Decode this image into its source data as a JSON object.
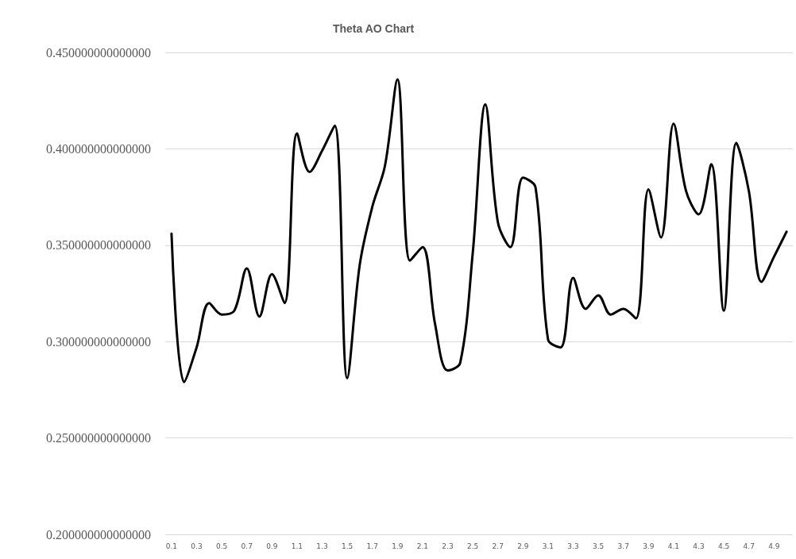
{
  "chart_data": {
    "type": "line",
    "title": "Theta AO Chart",
    "categories": [
      "0.1",
      null,
      "0.3",
      null,
      "0.5",
      null,
      "0.7",
      null,
      "0.9",
      null,
      "1.1",
      null,
      "1.3",
      null,
      "1.5",
      null,
      "1.7",
      null,
      "1.9",
      null,
      "2.1",
      null,
      "2.3",
      null,
      "2.5",
      null,
      "2.7",
      null,
      "2.9",
      null,
      "3.1",
      null,
      "3.3",
      null,
      "3.5",
      null,
      "3.7",
      null,
      "3.9",
      null,
      "4.1",
      null,
      "4.3",
      null,
      "4.5",
      null,
      "4.7",
      null,
      "4.9",
      null
    ],
    "series": [
      {
        "color": "#000000",
        "values": [
          0.356,
          0.279,
          0.297,
          0.32,
          0.314,
          0.316,
          0.338,
          0.313,
          0.335,
          0.32,
          0.408,
          0.388,
          0.399,
          0.412,
          0.281,
          0.34,
          0.37,
          0.391,
          0.436,
          0.342,
          0.349,
          0.309,
          0.285,
          0.289,
          0.346,
          0.423,
          0.362,
          0.349,
          0.385,
          0.38,
          0.301,
          0.297,
          0.333,
          0.317,
          0.324,
          0.314,
          0.317,
          0.312,
          0.379,
          0.354,
          0.413,
          0.378,
          0.366,
          0.392,
          0.316,
          0.403,
          0.378,
          0.331,
          0.344,
          0.357
        ]
      }
    ],
    "ylim": [
      0.2,
      0.45
    ],
    "yticks": [
      {
        "value": 0.2,
        "label": "0.200000000000000"
      },
      {
        "value": 0.25,
        "label": "0.250000000000000"
      },
      {
        "value": 0.3,
        "label": "0.300000000000000"
      },
      {
        "value": 0.35,
        "label": "0.350000000000000"
      },
      {
        "value": 0.4,
        "label": "0.400000000000000"
      },
      {
        "value": 0.45,
        "label": "0.450000000000000"
      }
    ],
    "grid": "y",
    "marker": "none",
    "line_style": "solid"
  }
}
